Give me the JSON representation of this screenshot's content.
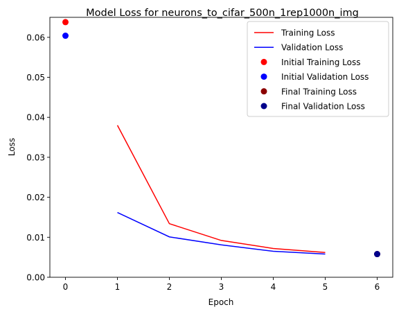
{
  "chart_data": {
    "type": "line",
    "title": "Model Loss for neurons_to_cifar_500n_1rep1000n_img",
    "xlabel": "Epoch",
    "ylabel": "Loss",
    "xlim": [
      -0.3,
      6.3
    ],
    "ylim": [
      0.0,
      0.065
    ],
    "xticks": [
      0,
      1,
      2,
      3,
      4,
      5,
      6
    ],
    "yticks": [
      0.0,
      0.01,
      0.02,
      0.03,
      0.04,
      0.05,
      0.06
    ],
    "ytick_labels": [
      "0.00",
      "0.01",
      "0.02",
      "0.03",
      "0.04",
      "0.05",
      "0.06"
    ],
    "grid": false,
    "legend_position": "top-right",
    "series": [
      {
        "name": "Training Loss",
        "kind": "line",
        "color": "#ff0000",
        "x": [
          1,
          2,
          3,
          4,
          5
        ],
        "y": [
          0.038,
          0.0134,
          0.0092,
          0.0072,
          0.0062
        ]
      },
      {
        "name": "Validation Loss",
        "kind": "line",
        "color": "#0000ff",
        "x": [
          1,
          2,
          3,
          4,
          5
        ],
        "y": [
          0.0162,
          0.0101,
          0.0081,
          0.0065,
          0.0058
        ]
      },
      {
        "name": "Initial Training Loss",
        "kind": "scatter",
        "color": "#ff0000",
        "x": [
          0
        ],
        "y": [
          0.0638
        ]
      },
      {
        "name": "Initial Validation Loss",
        "kind": "scatter",
        "color": "#0000ff",
        "x": [
          0
        ],
        "y": [
          0.0604
        ]
      },
      {
        "name": "Final Training Loss",
        "kind": "scatter",
        "color": "#8b0000",
        "x": [
          6
        ],
        "y": [
          0.0058
        ]
      },
      {
        "name": "Final Validation Loss",
        "kind": "scatter",
        "color": "#00008b",
        "x": [
          6
        ],
        "y": [
          0.0058
        ]
      }
    ]
  }
}
